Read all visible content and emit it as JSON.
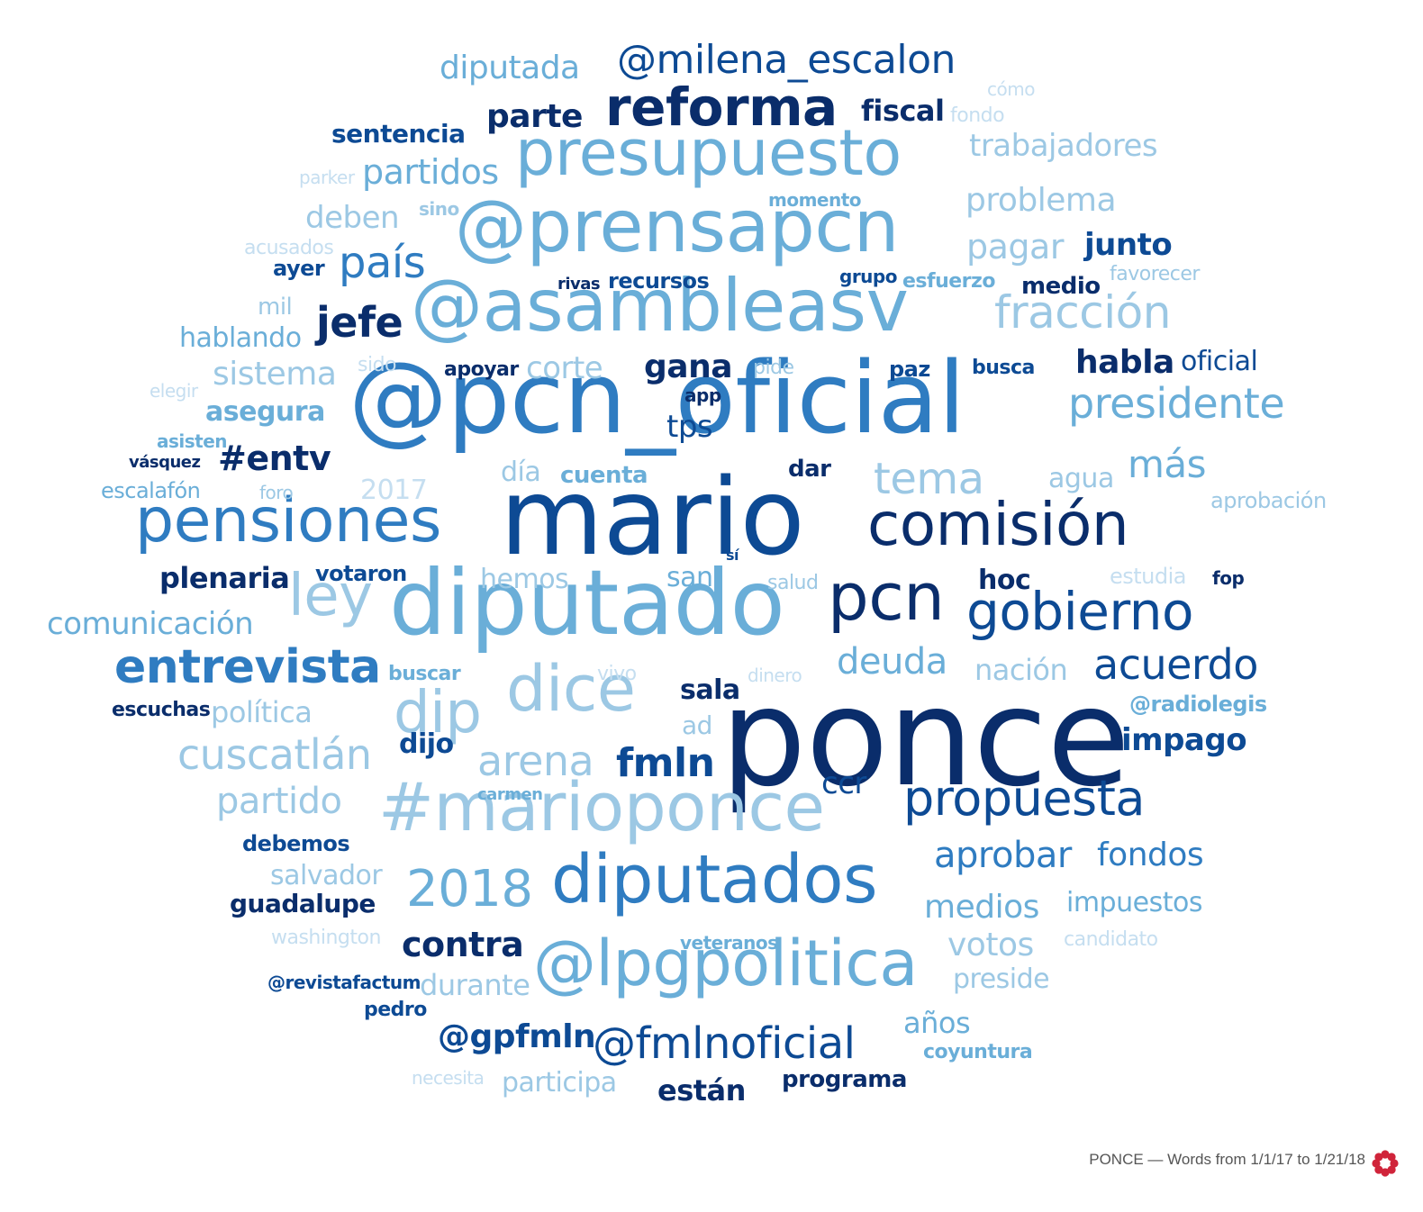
{
  "caption": "PONCE — Words from 1/1/17 to 1/21/18",
  "logo_icon": "flower-logo-icon",
  "colors": {
    "darkest": "#0a2d6b",
    "dark": "#0d4a94",
    "mid": "#2f7cc1",
    "light": "#6aaed8",
    "lighter": "#9cc8e4",
    "lightest": "#c5def0",
    "logo": "#d0243a"
  },
  "words": [
    {
      "text": "ponce",
      "tone": "darkest"
    },
    {
      "text": "mario",
      "tone": "dark"
    },
    {
      "text": "@pcn_oficial",
      "tone": "mid"
    },
    {
      "text": "diputado",
      "tone": "light"
    },
    {
      "text": "@asambleasv",
      "tone": "light"
    },
    {
      "text": "@prensapcn",
      "tone": "light"
    },
    {
      "text": "presupuesto",
      "tone": "light"
    },
    {
      "text": "reforma",
      "tone": "darkest"
    },
    {
      "text": "pensiones",
      "tone": "mid"
    },
    {
      "text": "comisión",
      "tone": "darkest"
    },
    {
      "text": "#marioponce",
      "tone": "lighter"
    },
    {
      "text": "diputados",
      "tone": "mid"
    },
    {
      "text": "@lpgpolitica",
      "tone": "light"
    },
    {
      "text": "dice",
      "tone": "lighter"
    },
    {
      "text": "pcn",
      "tone": "darkest"
    },
    {
      "text": "gobierno",
      "tone": "dark"
    },
    {
      "text": "ley",
      "tone": "lighter"
    },
    {
      "text": "dip",
      "tone": "lighter"
    },
    {
      "text": "propuesta",
      "tone": "dark"
    },
    {
      "text": "@fmlnoficial",
      "tone": "dark"
    },
    {
      "text": "entrevista",
      "tone": "mid"
    },
    {
      "text": "fmln",
      "tone": "dark"
    },
    {
      "text": "2018",
      "tone": "light"
    },
    {
      "text": "arena",
      "tone": "lighter"
    },
    {
      "text": "cuscatlán",
      "tone": "lighter"
    },
    {
      "text": "@milena_escalon",
      "tone": "dark"
    },
    {
      "text": "diputada",
      "tone": "light"
    },
    {
      "text": "partidos",
      "tone": "light"
    },
    {
      "text": "parte",
      "tone": "darkest"
    },
    {
      "text": "país",
      "tone": "mid"
    },
    {
      "text": "jefe",
      "tone": "darkest"
    },
    {
      "text": "fracción",
      "tone": "lighter"
    },
    {
      "text": "presidente",
      "tone": "light"
    },
    {
      "text": "tema",
      "tone": "lighter"
    },
    {
      "text": "más",
      "tone": "light"
    },
    {
      "text": "acuerdo",
      "tone": "dark"
    },
    {
      "text": "deuda",
      "tone": "light"
    },
    {
      "text": "aprobar",
      "tone": "mid"
    },
    {
      "text": "fondos",
      "tone": "mid"
    },
    {
      "text": "medios",
      "tone": "light"
    },
    {
      "text": "contra",
      "tone": "darkest"
    },
    {
      "text": "votos",
      "tone": "lighter"
    },
    {
      "text": "partido",
      "tone": "lighter"
    },
    {
      "text": "comunicación",
      "tone": "light"
    },
    {
      "text": "trabajadores",
      "tone": "lighter"
    },
    {
      "text": "problema",
      "tone": "lighter"
    },
    {
      "text": "pagar",
      "tone": "lighter"
    },
    {
      "text": "gana",
      "tone": "darkest"
    },
    {
      "text": "fiscal",
      "tone": "darkest"
    },
    {
      "text": "sentencia",
      "tone": "dark"
    },
    {
      "text": "deben",
      "tone": "lighter"
    },
    {
      "text": "junto",
      "tone": "dark"
    },
    {
      "text": "sistema",
      "tone": "lighter"
    },
    {
      "text": "habla",
      "tone": "darkest"
    },
    {
      "text": "oficial",
      "tone": "dark"
    },
    {
      "text": "asegura",
      "tone": "light"
    },
    {
      "text": "#entv",
      "tone": "darkest"
    },
    {
      "text": "tps",
      "tone": "dark"
    },
    {
      "text": "corte",
      "tone": "lighter"
    },
    {
      "text": "impago",
      "tone": "dark"
    },
    {
      "text": "nación",
      "tone": "lighter"
    },
    {
      "text": "sala",
      "tone": "darkest"
    },
    {
      "text": "ccr",
      "tone": "dark"
    },
    {
      "text": "impuestos",
      "tone": "light"
    },
    {
      "text": "@gpfmln",
      "tone": "dark"
    },
    {
      "text": "plenaria",
      "tone": "darkest"
    },
    {
      "text": "hablando",
      "tone": "light"
    },
    {
      "text": "política",
      "tone": "lighter"
    },
    {
      "text": "hemos",
      "tone": "lighter"
    },
    {
      "text": "san",
      "tone": "light"
    },
    {
      "text": "hoc",
      "tone": "darkest"
    },
    {
      "text": "guadalupe",
      "tone": "darkest"
    },
    {
      "text": "salvador",
      "tone": "lighter"
    },
    {
      "text": "durante",
      "tone": "lighter"
    },
    {
      "text": "preside",
      "tone": "lighter"
    },
    {
      "text": "años",
      "tone": "light"
    },
    {
      "text": "participa",
      "tone": "lighter"
    },
    {
      "text": "están",
      "tone": "darkest"
    },
    {
      "text": "programa",
      "tone": "darkest"
    },
    {
      "text": "dijo",
      "tone": "dark"
    },
    {
      "text": "debemos",
      "tone": "dark"
    },
    {
      "text": "votaron",
      "tone": "dark"
    },
    {
      "text": "recursos",
      "tone": "dark"
    },
    {
      "text": "medio",
      "tone": "darkest"
    },
    {
      "text": "agua",
      "tone": "lighter"
    },
    {
      "text": "ayer",
      "tone": "dark"
    },
    {
      "text": "2017",
      "tone": "lightest"
    },
    {
      "text": "día",
      "tone": "lighter"
    },
    {
      "text": "cuenta",
      "tone": "light"
    },
    {
      "text": "dar",
      "tone": "darkest"
    },
    {
      "text": "escalafón",
      "tone": "light"
    },
    {
      "text": "mil",
      "tone": "lighter"
    },
    {
      "text": "ad",
      "tone": "lighter"
    },
    {
      "text": "aprobación",
      "tone": "lighter"
    },
    {
      "text": "estudia",
      "tone": "lightest"
    },
    {
      "text": "@radiolegis",
      "tone": "light"
    },
    {
      "text": "buscar",
      "tone": "light"
    },
    {
      "text": "vivo",
      "tone": "lightest"
    },
    {
      "text": "dinero",
      "tone": "lightest"
    },
    {
      "text": "salud",
      "tone": "lighter"
    },
    {
      "text": "esfuerzo",
      "tone": "light"
    },
    {
      "text": "paz",
      "tone": "dark"
    },
    {
      "text": "pide",
      "tone": "lighter"
    },
    {
      "text": "busca",
      "tone": "dark"
    },
    {
      "text": "apoyar",
      "tone": "darkest"
    },
    {
      "text": "washington",
      "tone": "lightest"
    },
    {
      "text": "candidato",
      "tone": "lightest"
    },
    {
      "text": "veteranos",
      "tone": "light"
    },
    {
      "text": "escuchas",
      "tone": "darkest"
    },
    {
      "text": "coyuntura",
      "tone": "light"
    },
    {
      "text": "@revistafactum",
      "tone": "dark"
    },
    {
      "text": "pedro",
      "tone": "dark"
    },
    {
      "text": "necesita",
      "tone": "lightest"
    },
    {
      "text": "carmen",
      "tone": "light"
    },
    {
      "text": "favorecer",
      "tone": "lighter"
    },
    {
      "text": "fondo",
      "tone": "lightest"
    },
    {
      "text": "cómo",
      "tone": "lightest"
    },
    {
      "text": "momento",
      "tone": "light"
    },
    {
      "text": "sino",
      "tone": "lighter"
    },
    {
      "text": "parker",
      "tone": "lightest"
    },
    {
      "text": "acusados",
      "tone": "lightest"
    },
    {
      "text": "grupo",
      "tone": "dark"
    },
    {
      "text": "rivas",
      "tone": "darkest"
    },
    {
      "text": "sido",
      "tone": "lightest"
    },
    {
      "text": "elegir",
      "tone": "lightest"
    },
    {
      "text": "app",
      "tone": "darkest"
    },
    {
      "text": "asisten",
      "tone": "light"
    },
    {
      "text": "vásquez",
      "tone": "darkest"
    },
    {
      "text": "foro",
      "tone": "lighter"
    },
    {
      "text": "sí",
      "tone": "dark"
    },
    {
      "text": "fop",
      "tone": "darkest"
    }
  ]
}
